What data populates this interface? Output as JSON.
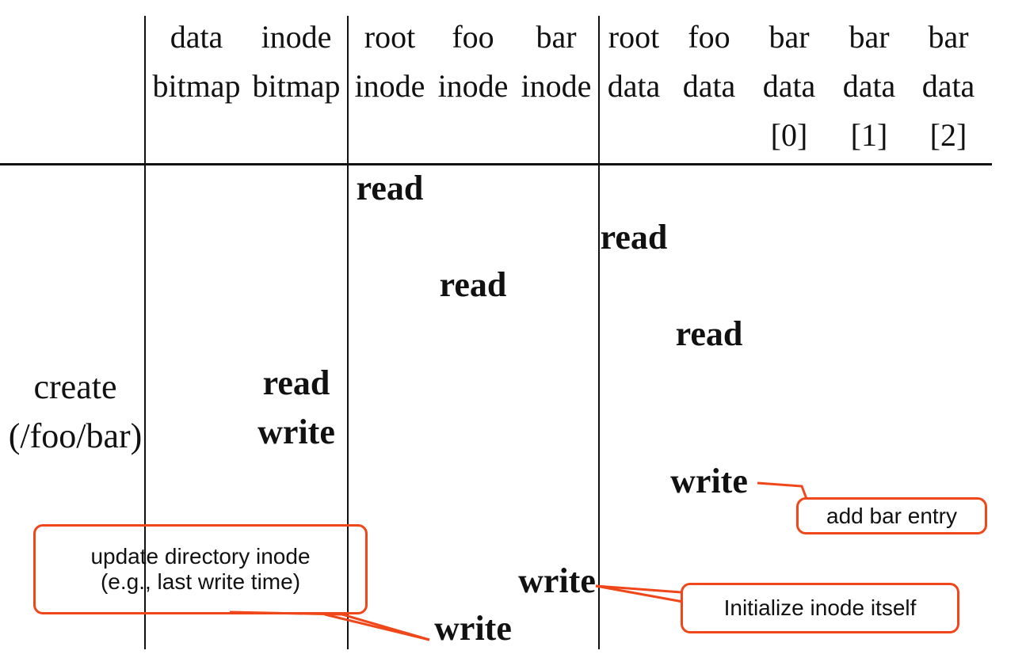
{
  "headers": [
    {
      "id": "data-bitmap",
      "lines": [
        "data",
        "bitmap"
      ]
    },
    {
      "id": "inode-bitmap",
      "lines": [
        "inode",
        "bitmap"
      ]
    },
    {
      "id": "root-inode",
      "lines": [
        "root",
        "inode"
      ]
    },
    {
      "id": "foo-inode",
      "lines": [
        "foo",
        "inode"
      ]
    },
    {
      "id": "bar-inode",
      "lines": [
        "bar",
        "inode"
      ]
    },
    {
      "id": "root-data",
      "lines": [
        "root",
        "data"
      ]
    },
    {
      "id": "foo-data",
      "lines": [
        "foo",
        "data"
      ]
    },
    {
      "id": "bar-data-0",
      "lines": [
        "bar",
        "data",
        "[0]"
      ]
    },
    {
      "id": "bar-data-1",
      "lines": [
        "bar",
        "data",
        "[1]"
      ]
    },
    {
      "id": "bar-data-2",
      "lines": [
        "bar",
        "data",
        "[2]"
      ]
    }
  ],
  "row_label": [
    "create",
    "(/foo/bar)"
  ],
  "operations": {
    "root_inode_read": "read",
    "root_data_read": "read",
    "foo_inode_read": "read",
    "foo_data_read": "read",
    "inode_bitmap_read": "read",
    "inode_bitmap_write": "write",
    "foo_data_write": "write",
    "bar_inode_write": "write",
    "foo_inode_write": "write"
  },
  "callouts": {
    "add_bar_entry": "add bar entry",
    "init_inode": "Initialize inode itself",
    "update_dir_line1": "update directory inode",
    "update_dir_line2": "(e.g., last write time)"
  },
  "colors": {
    "callout_border": "#f0471a",
    "line": "#111111"
  }
}
